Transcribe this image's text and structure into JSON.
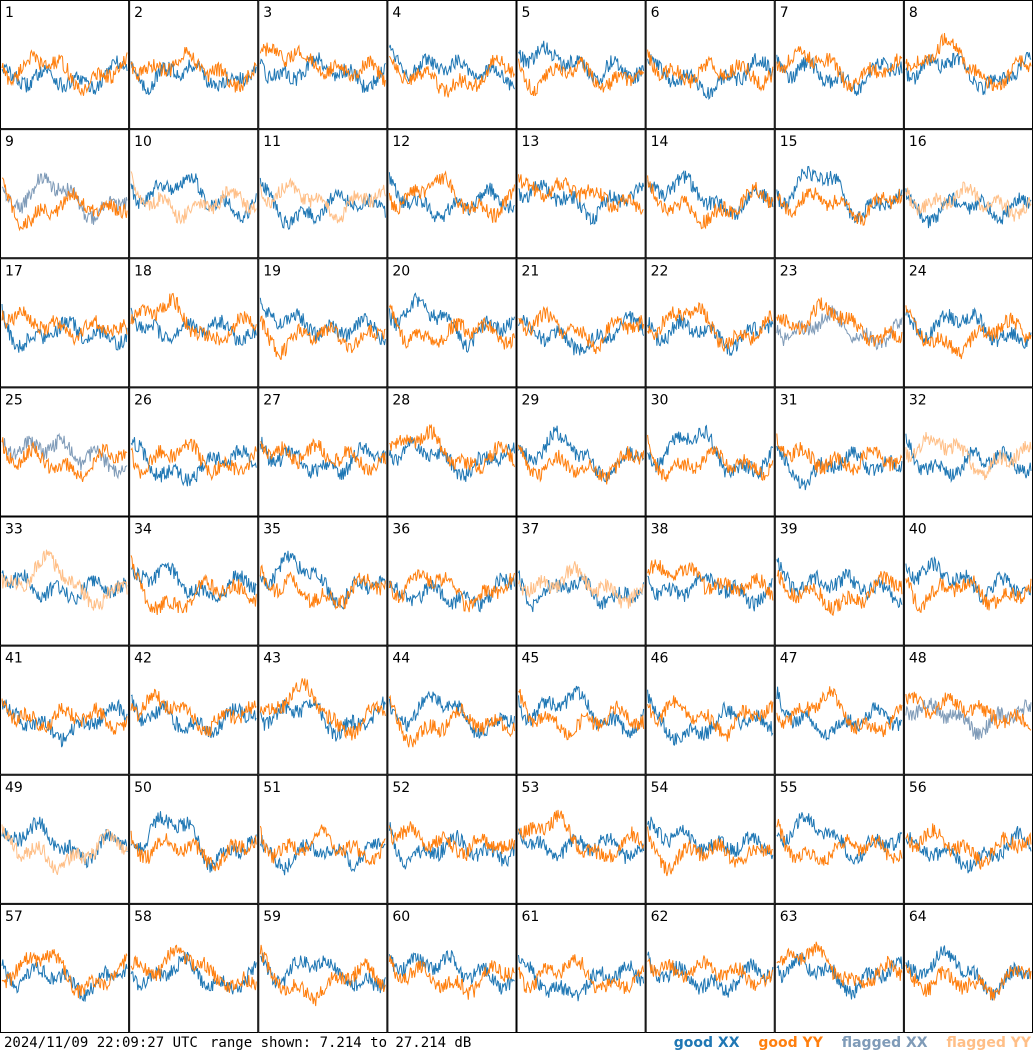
{
  "chart_data": {
    "type": "line",
    "layout": "8x8 small multiples (one panel per antenna)",
    "panels": [
      {
        "label": "1",
        "xx": "good",
        "yy": "good"
      },
      {
        "label": "2",
        "xx": "good",
        "yy": "good"
      },
      {
        "label": "3",
        "xx": "good",
        "yy": "good"
      },
      {
        "label": "4",
        "xx": "good",
        "yy": "good"
      },
      {
        "label": "5",
        "xx": "good",
        "yy": "good"
      },
      {
        "label": "6",
        "xx": "good",
        "yy": "good"
      },
      {
        "label": "7",
        "xx": "good",
        "yy": "good"
      },
      {
        "label": "8",
        "xx": "good",
        "yy": "good"
      },
      {
        "label": "9",
        "xx": "flagged",
        "yy": "good"
      },
      {
        "label": "10",
        "xx": "good",
        "yy": "flagged"
      },
      {
        "label": "11",
        "xx": "good",
        "yy": "flagged"
      },
      {
        "label": "12",
        "xx": "good",
        "yy": "good"
      },
      {
        "label": "13",
        "xx": "good",
        "yy": "good"
      },
      {
        "label": "14",
        "xx": "good",
        "yy": "good"
      },
      {
        "label": "15",
        "xx": "good",
        "yy": "good"
      },
      {
        "label": "16",
        "xx": "good",
        "yy": "flagged"
      },
      {
        "label": "17",
        "xx": "good",
        "yy": "good"
      },
      {
        "label": "18",
        "xx": "good",
        "yy": "good"
      },
      {
        "label": "19",
        "xx": "good",
        "yy": "good"
      },
      {
        "label": "20",
        "xx": "good",
        "yy": "good"
      },
      {
        "label": "21",
        "xx": "good",
        "yy": "good"
      },
      {
        "label": "22",
        "xx": "good",
        "yy": "good"
      },
      {
        "label": "23",
        "xx": "flagged",
        "yy": "good"
      },
      {
        "label": "24",
        "xx": "good",
        "yy": "good"
      },
      {
        "label": "25",
        "xx": "flagged",
        "yy": "good"
      },
      {
        "label": "26",
        "xx": "good",
        "yy": "good"
      },
      {
        "label": "27",
        "xx": "good",
        "yy": "good"
      },
      {
        "label": "28",
        "xx": "good",
        "yy": "good"
      },
      {
        "label": "29",
        "xx": "good",
        "yy": "good"
      },
      {
        "label": "30",
        "xx": "good",
        "yy": "good"
      },
      {
        "label": "31",
        "xx": "good",
        "yy": "good"
      },
      {
        "label": "32",
        "xx": "good",
        "yy": "flagged"
      },
      {
        "label": "33",
        "xx": "good",
        "yy": "flagged"
      },
      {
        "label": "34",
        "xx": "good",
        "yy": "good"
      },
      {
        "label": "35",
        "xx": "good",
        "yy": "good"
      },
      {
        "label": "36",
        "xx": "good",
        "yy": "good"
      },
      {
        "label": "37",
        "xx": "good",
        "yy": "flagged"
      },
      {
        "label": "38",
        "xx": "good",
        "yy": "good"
      },
      {
        "label": "39",
        "xx": "good",
        "yy": "good"
      },
      {
        "label": "40",
        "xx": "good",
        "yy": "good"
      },
      {
        "label": "41",
        "xx": "good",
        "yy": "good"
      },
      {
        "label": "42",
        "xx": "good",
        "yy": "good"
      },
      {
        "label": "43",
        "xx": "good",
        "yy": "good"
      },
      {
        "label": "44",
        "xx": "good",
        "yy": "good"
      },
      {
        "label": "45",
        "xx": "good",
        "yy": "good"
      },
      {
        "label": "46",
        "xx": "good",
        "yy": "good"
      },
      {
        "label": "47",
        "xx": "good",
        "yy": "good"
      },
      {
        "label": "48",
        "xx": "flagged",
        "yy": "good"
      },
      {
        "label": "49",
        "xx": "good",
        "yy": "flagged"
      },
      {
        "label": "50",
        "xx": "good",
        "yy": "good"
      },
      {
        "label": "51",
        "xx": "good",
        "yy": "good"
      },
      {
        "label": "52",
        "xx": "good",
        "yy": "good"
      },
      {
        "label": "53",
        "xx": "good",
        "yy": "good"
      },
      {
        "label": "54",
        "xx": "good",
        "yy": "good"
      },
      {
        "label": "55",
        "xx": "good",
        "yy": "good"
      },
      {
        "label": "56",
        "xx": "good",
        "yy": "good"
      },
      {
        "label": "57",
        "xx": "good",
        "yy": "good"
      },
      {
        "label": "58",
        "xx": "good",
        "yy": "good"
      },
      {
        "label": "59",
        "xx": "good",
        "yy": "good"
      },
      {
        "label": "60",
        "xx": "good",
        "yy": "good"
      },
      {
        "label": "61",
        "xx": "good",
        "yy": "good"
      },
      {
        "label": "62",
        "xx": "good",
        "yy": "good"
      },
      {
        "label": "63",
        "xx": "good",
        "yy": "good"
      },
      {
        "label": "64",
        "xx": "good",
        "yy": "good"
      }
    ],
    "y_range_db": [
      7.214,
      27.214
    ],
    "legend": [
      {
        "label": "good XX",
        "color": "#1f77b4"
      },
      {
        "label": "good YY",
        "color": "#ff7f0e"
      },
      {
        "label": "flagged XX",
        "color": "#7f9bb8"
      },
      {
        "label": "flagged YY",
        "color": "#ffbf87"
      }
    ],
    "legend_placement": "bottom-right",
    "grid": false
  },
  "footer": {
    "timestamp": "2024/11/09 22:09:27 UTC",
    "range_text": "range shown: 7.214 to 27.214 dB"
  }
}
